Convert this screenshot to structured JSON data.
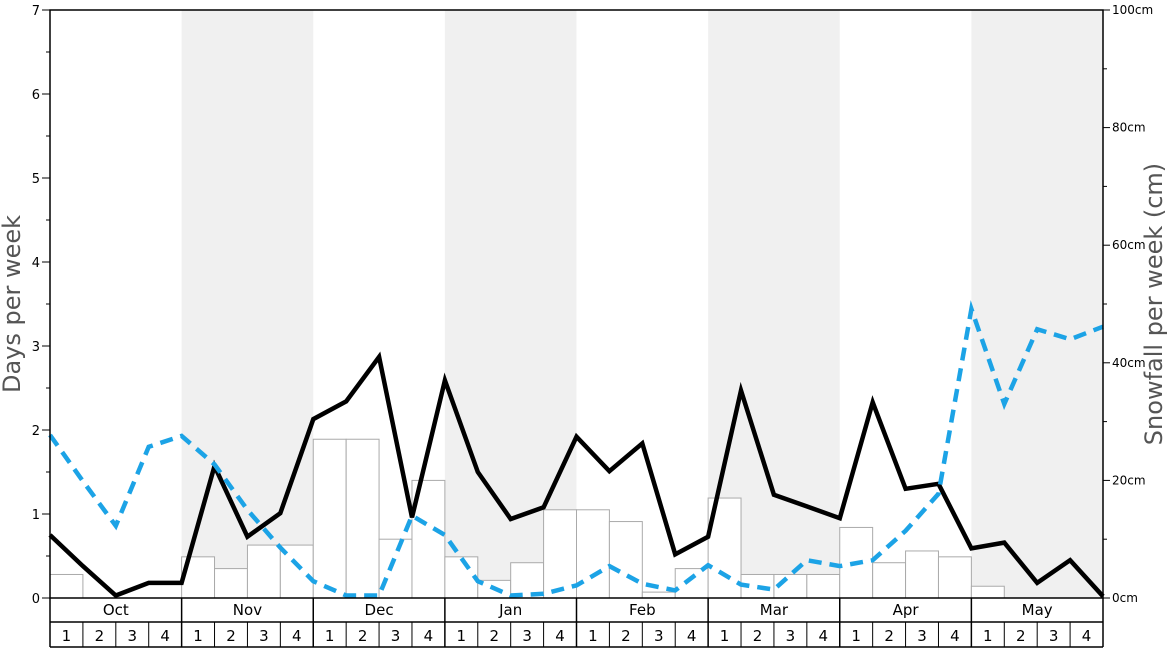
{
  "chart_data": {
    "type": "bar+line",
    "ylabel_left": "Days per week",
    "ylabel_right": "Snowfall per week (cm)",
    "ylim_left": [
      0,
      7
    ],
    "ylim_right": [
      0,
      100
    ],
    "left_ticks": [
      "0",
      "1",
      "2",
      "3",
      "4",
      "5",
      "6",
      "7"
    ],
    "right_ticks": [
      "0cm",
      "20cm",
      "40cm",
      "60cm",
      "80cm",
      "100cm"
    ],
    "months": [
      "Oct",
      "Nov",
      "Dec",
      "Jan",
      "Feb",
      "Mar",
      "Apr",
      "May"
    ],
    "weeks": [
      "1",
      "2",
      "3",
      "4"
    ],
    "shaded_months": [
      "Nov",
      "Jan",
      "Mar",
      "May"
    ],
    "colors": {
      "snow_days_line": "#000000",
      "dashed_line": "#1ca3e6",
      "bar_fill": "#ffffff",
      "bar_stroke": "#aaaaaa",
      "shade": "#f0f0f0"
    },
    "series": [
      {
        "type": "bar",
        "axis": "right",
        "values": [
          4,
          0,
          0,
          0,
          7,
          5,
          9,
          9,
          27,
          27,
          10,
          20,
          7,
          3,
          6,
          15,
          15,
          13,
          1,
          5,
          17,
          4,
          4,
          4,
          12,
          6,
          8,
          7,
          2,
          0,
          0,
          0
        ]
      },
      {
        "type": "line",
        "axis": "left",
        "values": [
          0.75,
          0.38,
          0.03,
          0.18,
          0.18,
          1.57,
          0.73,
          1.01,
          2.13,
          2.34,
          2.87,
          0.96,
          2.59,
          1.5,
          0.94,
          1.08,
          1.92,
          1.51,
          1.84,
          0.52,
          0.73,
          2.47,
          1.23,
          1.09,
          0.95,
          2.33,
          1.3,
          1.36,
          0.59,
          0.66,
          0.18,
          0.45,
          0.02
        ]
      },
      {
        "type": "line",
        "axis": "left",
        "style": "dashed",
        "values": [
          1.94,
          1.39,
          0.86,
          1.8,
          1.93,
          1.59,
          1.05,
          0.6,
          0.2,
          0.03,
          0.03,
          0.98,
          0.75,
          0.2,
          0.03,
          0.05,
          0.15,
          0.38,
          0.17,
          0.09,
          0.39,
          0.16,
          0.1,
          0.45,
          0.38,
          0.45,
          0.8,
          1.24,
          3.44,
          2.31,
          3.2,
          3.08,
          3.23
        ]
      }
    ]
  }
}
